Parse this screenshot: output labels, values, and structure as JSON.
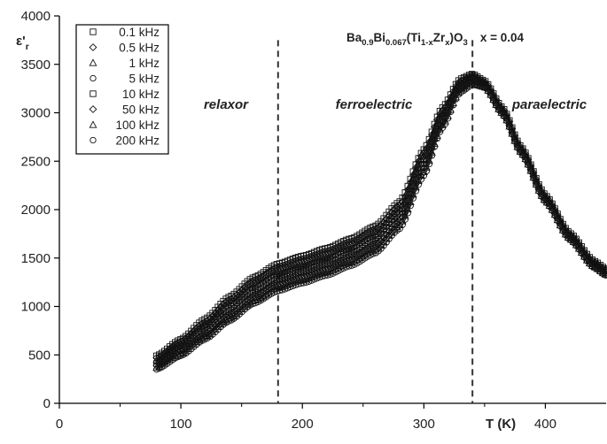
{
  "chart_data": {
    "type": "scatter",
    "title": "Ba0.9Bi0.067(Ti1-xZrx)O3   x = 0.04",
    "title_parts": {
      "el1": "Ba",
      "sub1": "0.9",
      "el2": "Bi",
      "sub2": "0.067",
      "mid1": "(Ti",
      "sub3": "1-x",
      "el3": "Zr",
      "sub4": "x",
      "tail": ")O",
      "sub5": "3",
      "param": "x = 0.04"
    },
    "ylabel": "ε'r",
    "ylabel_parts": {
      "base": "ε'",
      "sub": "r"
    },
    "xlabel": "T (K)",
    "xlim": [
      0,
      450
    ],
    "ylim": [
      0,
      4000
    ],
    "xticks": [
      0,
      100,
      200,
      300,
      400
    ],
    "yticks": [
      0,
      500,
      1000,
      1500,
      2000,
      2500,
      3000,
      3500,
      4000
    ],
    "grid": false,
    "legend_position": "top-left",
    "vlines": [
      180,
      340
    ],
    "regions": [
      "relaxor",
      "ferroelectric",
      "paraelectric"
    ],
    "x": [
      80,
      100,
      120,
      140,
      160,
      180,
      200,
      220,
      240,
      260,
      280,
      300,
      315,
      330,
      340,
      350,
      365,
      380,
      400,
      420,
      440,
      450
    ],
    "series": [
      {
        "name": "0.1 kHz",
        "marker": "square",
        "values": [
          490,
          660,
          870,
          1100,
          1300,
          1440,
          1520,
          1600,
          1700,
          1830,
          2080,
          2620,
          3050,
          3350,
          3400,
          3330,
          3050,
          2650,
          2150,
          1760,
          1470,
          1390
        ]
      },
      {
        "name": "0.5 kHz",
        "marker": "diamond",
        "values": [
          470,
          640,
          840,
          1070,
          1260,
          1400,
          1480,
          1560,
          1660,
          1790,
          2040,
          2590,
          3020,
          3330,
          3390,
          3320,
          3040,
          2640,
          2140,
          1750,
          1460,
          1380
        ]
      },
      {
        "name": "1 kHz",
        "marker": "triangle",
        "values": [
          450,
          615,
          810,
          1030,
          1220,
          1360,
          1440,
          1520,
          1620,
          1750,
          2000,
          2550,
          2990,
          3310,
          3380,
          3310,
          3030,
          2630,
          2130,
          1740,
          1450,
          1370
        ]
      },
      {
        "name": "5 kHz",
        "marker": "circle",
        "values": [
          430,
          590,
          780,
          990,
          1180,
          1320,
          1400,
          1480,
          1580,
          1710,
          1960,
          2510,
          2960,
          3290,
          3370,
          3300,
          3020,
          2620,
          2120,
          1730,
          1440,
          1360
        ]
      },
      {
        "name": "10 kHz",
        "marker": "square",
        "values": [
          410,
          565,
          750,
          950,
          1140,
          1280,
          1360,
          1440,
          1540,
          1670,
          1920,
          2470,
          2930,
          3270,
          3350,
          3290,
          3010,
          2610,
          2110,
          1720,
          1430,
          1350
        ]
      },
      {
        "name": "50 kHz",
        "marker": "diamond",
        "values": [
          390,
          540,
          720,
          910,
          1100,
          1240,
          1320,
          1400,
          1500,
          1630,
          1880,
          2430,
          2900,
          3250,
          3330,
          3280,
          3000,
          2600,
          2100,
          1710,
          1420,
          1340
        ]
      },
      {
        "name": "100 kHz",
        "marker": "triangle",
        "values": [
          370,
          515,
          690,
          880,
          1060,
          1200,
          1280,
          1360,
          1460,
          1590,
          1840,
          2390,
          2870,
          3230,
          3310,
          3270,
          2990,
          2590,
          2090,
          1700,
          1410,
          1330
        ]
      },
      {
        "name": "200 kHz",
        "marker": "circle",
        "values": [
          350,
          490,
          660,
          850,
          1030,
          1160,
          1240,
          1320,
          1420,
          1550,
          1800,
          2350,
          2840,
          3210,
          3290,
          3260,
          2980,
          2580,
          2080,
          1690,
          1400,
          1320
        ]
      }
    ]
  }
}
